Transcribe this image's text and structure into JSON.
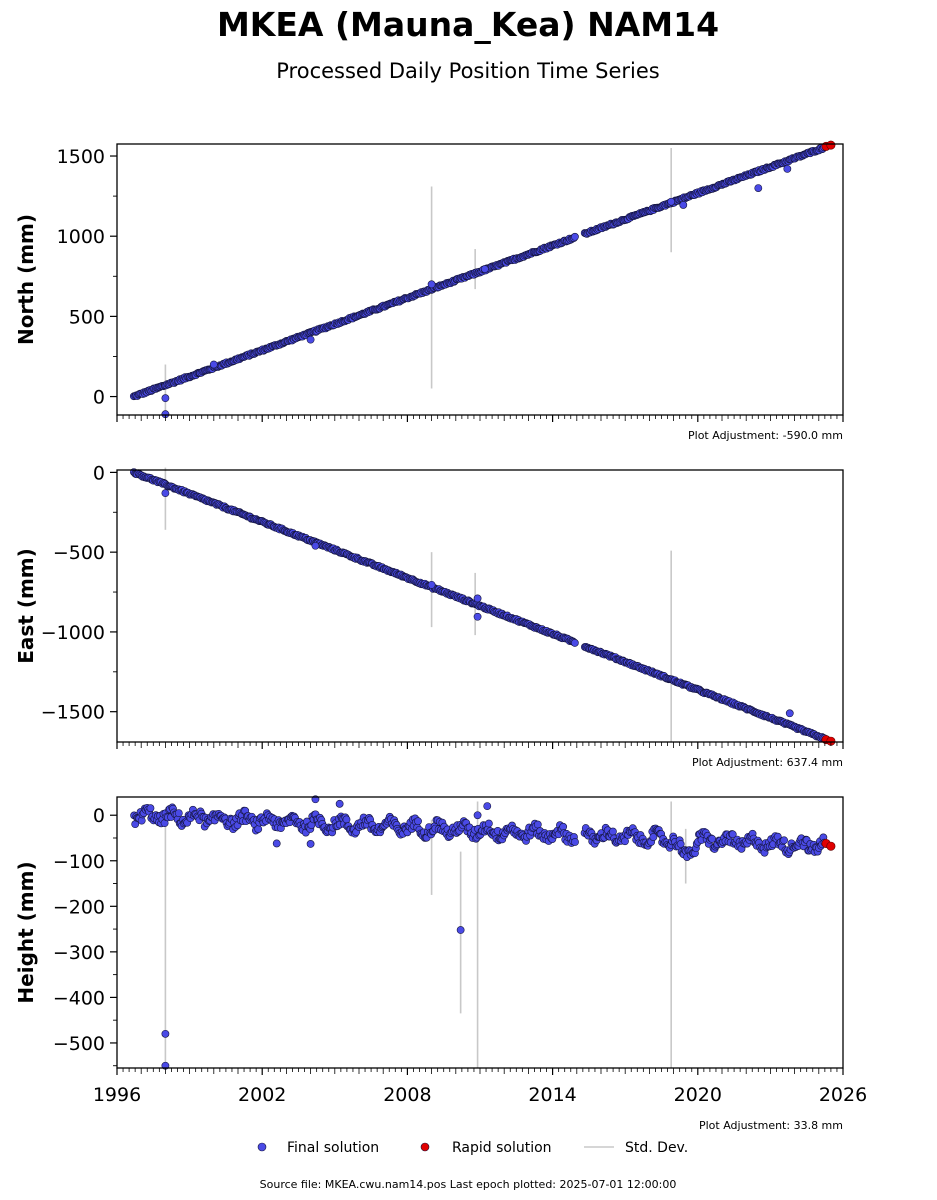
{
  "title": "MKEA (Mauna_Kea) NAM14",
  "subtitle": "Processed Daily Position Time Series",
  "footer": "Source file: MKEA.cwu.nam14.pos  Last epoch plotted: 2025-07-01 12:00:00",
  "legend": {
    "final": "Final solution",
    "rapid": "Rapid solution",
    "std": "Std. Dev."
  },
  "colors": {
    "final": "#4a4ae6",
    "rapid": "#e00000",
    "std": "#c8c8c8",
    "edge": "#14143c"
  },
  "chart_data": [
    {
      "type": "scatter",
      "ylabel": "North (mm)",
      "adjustment": "Plot Adjustment: -590.0 mm",
      "xlim": [
        1996,
        2026
      ],
      "ylim": [
        -115,
        1575
      ],
      "yticks": [
        0,
        500,
        1000,
        1500
      ],
      "trend": {
        "start": [
          1996.7,
          0
        ],
        "end": [
          2025.5,
          1568
        ]
      },
      "gap": [
        2014.95,
        2015.3
      ],
      "outliers": [
        {
          "x": 1998.0,
          "y": -10
        },
        {
          "x": 1998.0,
          "y": -110
        },
        {
          "x": 2000.0,
          "y": 200
        },
        {
          "x": 2004.0,
          "y": 355
        },
        {
          "x": 2009.0,
          "y": 700
        },
        {
          "x": 2011.2,
          "y": 795
        },
        {
          "x": 2018.9,
          "y": 1215
        },
        {
          "x": 2019.4,
          "y": 1195
        },
        {
          "x": 2022.5,
          "y": 1300
        },
        {
          "x": 2023.7,
          "y": 1420
        }
      ],
      "std_bars": [
        {
          "x": 1998.0,
          "low": -100,
          "high": 200
        },
        {
          "x": 2009.0,
          "low": 50,
          "high": 1310
        },
        {
          "x": 2010.8,
          "low": 670,
          "high": 920
        },
        {
          "x": 2018.9,
          "low": 900,
          "high": 1550
        }
      ],
      "rapid": [
        {
          "x": 2025.3,
          "y": 1560
        },
        {
          "x": 2025.5,
          "y": 1568
        }
      ]
    },
    {
      "type": "scatter",
      "ylabel": "East (mm)",
      "adjustment": "Plot Adjustment: 637.4 mm",
      "xlim": [
        1996,
        2026
      ],
      "ylim": [
        -1690,
        15
      ],
      "yticks": [
        0,
        -500,
        -1000,
        -1500
      ],
      "trend": {
        "start": [
          1996.7,
          0
        ],
        "end": [
          2025.5,
          -1685
        ]
      },
      "gap": [
        2014.95,
        2015.3
      ],
      "outliers": [
        {
          "x": 1998.0,
          "y": -130
        },
        {
          "x": 2004.2,
          "y": -460
        },
        {
          "x": 2009.0,
          "y": -705
        },
        {
          "x": 2010.9,
          "y": -905
        },
        {
          "x": 2010.9,
          "y": -790
        },
        {
          "x": 2023.8,
          "y": -1510
        }
      ],
      "std_bars": [
        {
          "x": 1998.0,
          "low": -360,
          "high": 30
        },
        {
          "x": 2009.0,
          "low": -970,
          "high": -500
        },
        {
          "x": 2010.8,
          "low": -1020,
          "high": -630
        },
        {
          "x": 2018.9,
          "low": -1690,
          "high": -490
        }
      ],
      "rapid": [
        {
          "x": 2025.3,
          "y": -1675
        },
        {
          "x": 2025.5,
          "y": -1685
        }
      ]
    },
    {
      "type": "scatter",
      "ylabel": "Height (mm)",
      "adjustment": "Plot Adjustment: 33.8 mm",
      "xlabel_ticks": [
        "1996",
        "2002",
        "2008",
        "2014",
        "2020",
        "2026"
      ],
      "xlim": [
        1996,
        2026
      ],
      "ylim": [
        -555,
        40
      ],
      "yticks": [
        0,
        -100,
        -200,
        -300,
        -400,
        -500
      ],
      "trend": {
        "start": [
          1996.7,
          0
        ],
        "end": [
          2025.5,
          -68
        ]
      },
      "gap": [
        2014.95,
        2015.3
      ],
      "outliers": [
        {
          "x": 1998.0,
          "y": -480
        },
        {
          "x": 1998.0,
          "y": -550
        },
        {
          "x": 2004.2,
          "y": 35
        },
        {
          "x": 2005.2,
          "y": 25
        },
        {
          "x": 2010.2,
          "y": -252
        },
        {
          "x": 2010.9,
          "y": 0
        },
        {
          "x": 2011.3,
          "y": 20
        },
        {
          "x": 2002.6,
          "y": -62
        },
        {
          "x": 2004.0,
          "y": -63
        }
      ],
      "std_bars": [
        {
          "x": 1998.0,
          "low": -555,
          "high": 10
        },
        {
          "x": 2009.0,
          "low": -175,
          "high": -10
        },
        {
          "x": 2010.2,
          "low": -435,
          "high": -80
        },
        {
          "x": 2010.9,
          "low": -555,
          "high": 30
        },
        {
          "x": 2018.9,
          "low": -555,
          "high": 30
        },
        {
          "x": 2019.5,
          "low": -150,
          "high": -30
        }
      ],
      "rapid": [
        {
          "x": 2025.3,
          "y": -62
        },
        {
          "x": 2025.5,
          "y": -68
        }
      ]
    }
  ]
}
